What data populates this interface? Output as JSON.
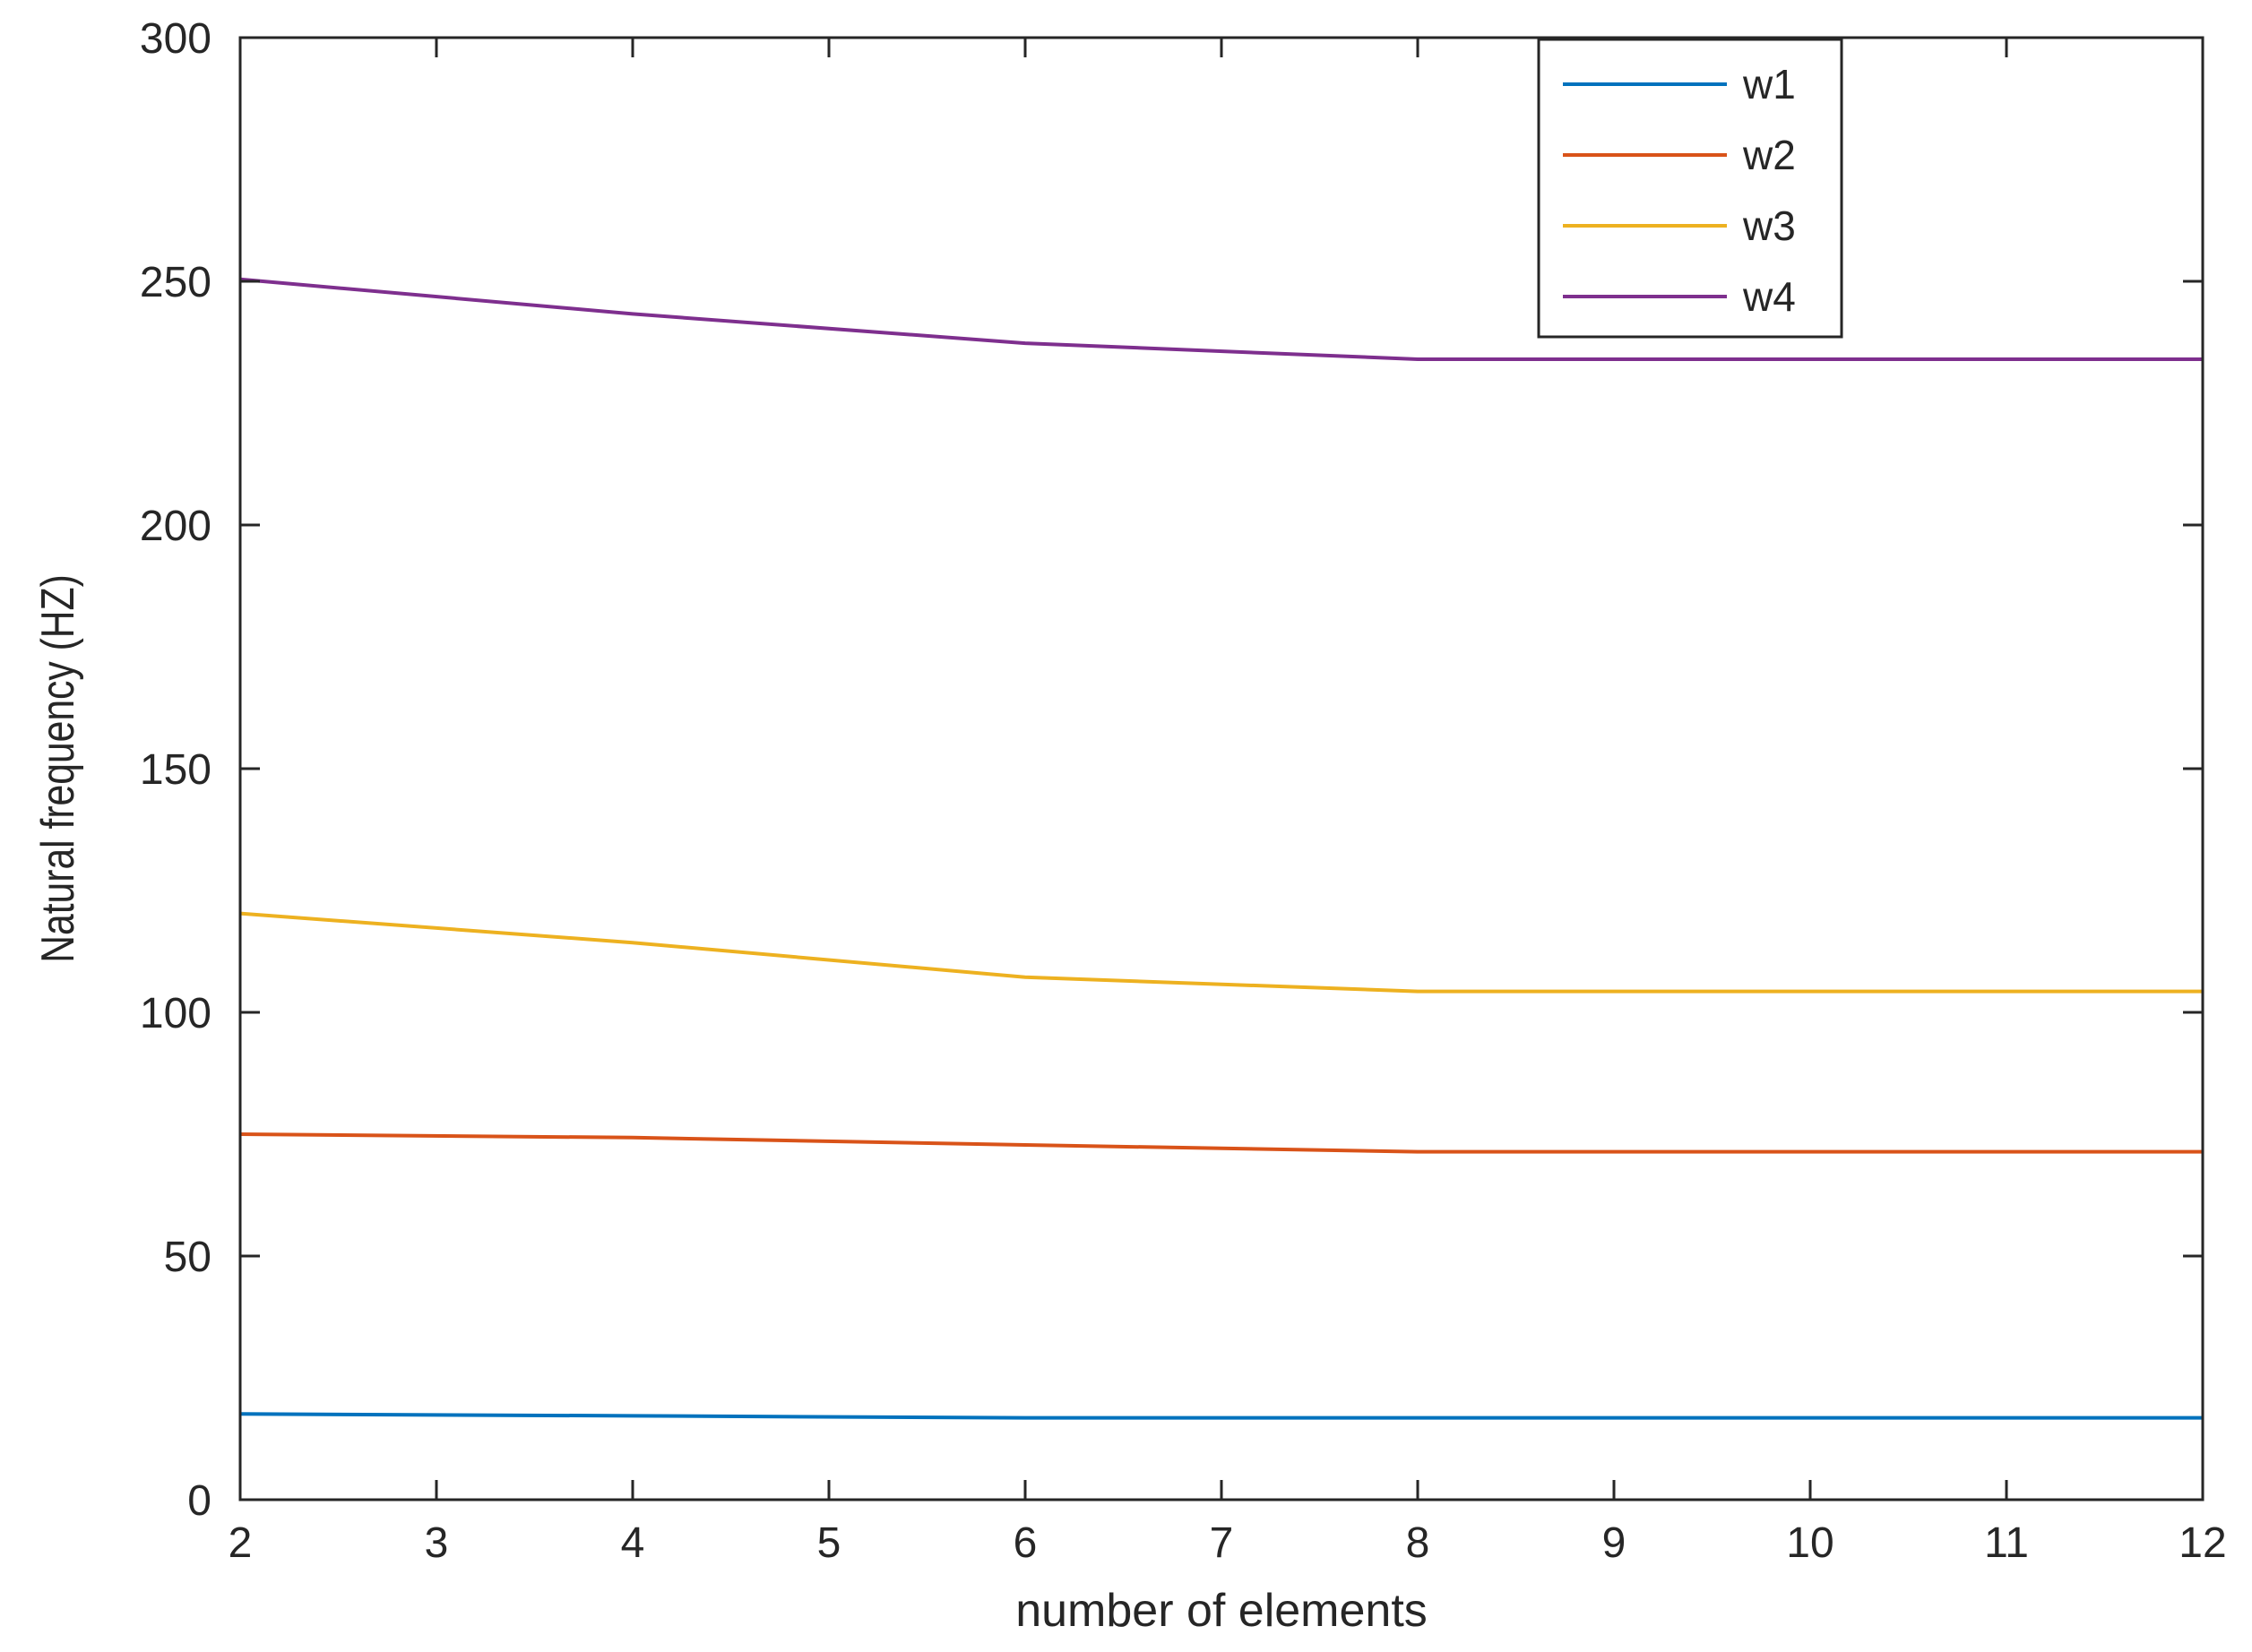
{
  "chart_data": {
    "type": "line",
    "title": "",
    "xlabel": "number of elements",
    "ylabel": "Natural frequency (HZ)",
    "xlim": [
      2,
      12
    ],
    "ylim": [
      0,
      300
    ],
    "xticks": [
      2,
      3,
      4,
      5,
      6,
      7,
      8,
      9,
      10,
      11,
      12
    ],
    "yticks": [
      0,
      50,
      100,
      150,
      200,
      250,
      300
    ],
    "grid": false,
    "legend_position": "top-right",
    "x": [
      2,
      4,
      6,
      8,
      10,
      12
    ],
    "series": [
      {
        "name": "w1",
        "color": "#0072BD",
        "values": [
          17.6,
          17.2,
          16.8,
          16.8,
          16.8,
          16.8
        ]
      },
      {
        "name": "w2",
        "color": "#D95319",
        "values": [
          75.0,
          74.3,
          72.8,
          71.4,
          71.4,
          71.4
        ]
      },
      {
        "name": "w3",
        "color": "#EDB120",
        "values": [
          120.3,
          114.3,
          107.2,
          104.3,
          104.3,
          104.3
        ]
      },
      {
        "name": "w4",
        "color": "#7E2F8E",
        "values": [
          250.4,
          243.3,
          237.3,
          234.0,
          234.0,
          234.0
        ]
      }
    ]
  }
}
